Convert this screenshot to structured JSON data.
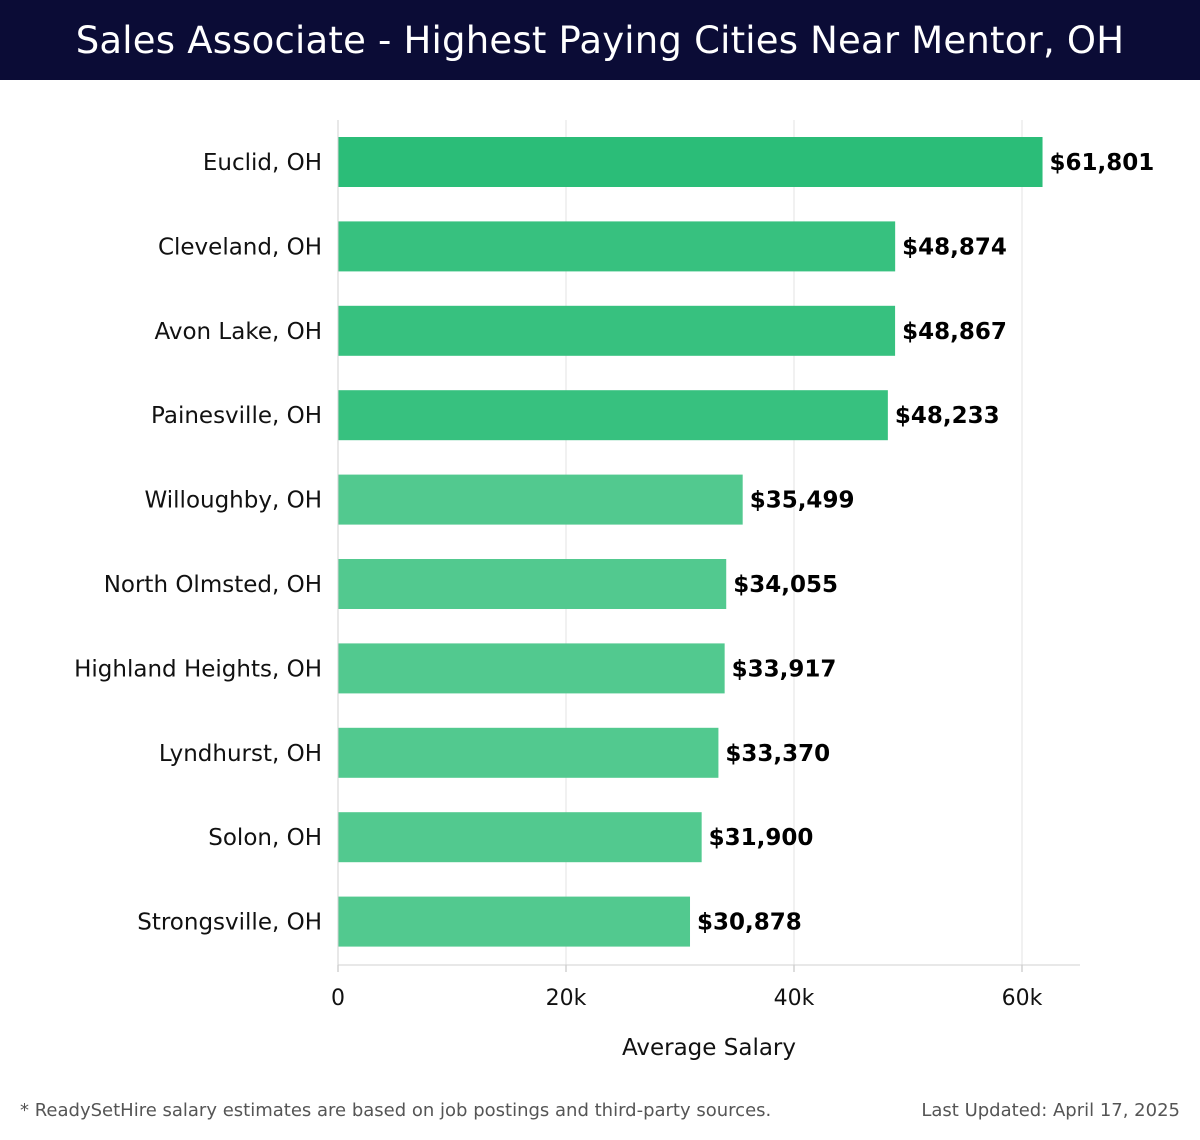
{
  "header": {
    "title": "Sales Associate - Highest Paying Cities Near Mentor, OH",
    "background_color": "#0b0c36"
  },
  "chart_data": {
    "type": "bar",
    "orientation": "horizontal",
    "categories": [
      "Euclid, OH",
      "Cleveland, OH",
      "Avon Lake, OH",
      "Painesville, OH",
      "Willoughby, OH",
      "North Olmsted, OH",
      "Highland Heights, OH",
      "Lyndhurst, OH",
      "Solon, OH",
      "Strongsville, OH"
    ],
    "values": [
      61801,
      48874,
      48867,
      48233,
      35499,
      34055,
      33917,
      33370,
      31900,
      30878
    ],
    "value_labels": [
      "$61,801",
      "$48,874",
      "$48,867",
      "$48,233",
      "$35,499",
      "$34,055",
      "$33,917",
      "$33,370",
      "$31,900",
      "$30,878"
    ],
    "bar_colors": [
      "#2bbd78",
      "#37c17f",
      "#37c17f",
      "#37c17f",
      "#52c98f",
      "#52c98f",
      "#52c98f",
      "#52c98f",
      "#52c98f",
      "#52c98f"
    ],
    "xlabel": "Average Salary",
    "ylabel": "",
    "xlim": [
      0,
      65000
    ],
    "xticks": [
      0,
      20000,
      40000,
      60000
    ],
    "xtick_labels": [
      "0",
      "20k",
      "40k",
      "60k"
    ],
    "grid": true
  },
  "footer": {
    "note": "* ReadySetHire salary estimates are based on job postings and third-party sources.",
    "updated": "Last Updated: April 17, 2025"
  }
}
